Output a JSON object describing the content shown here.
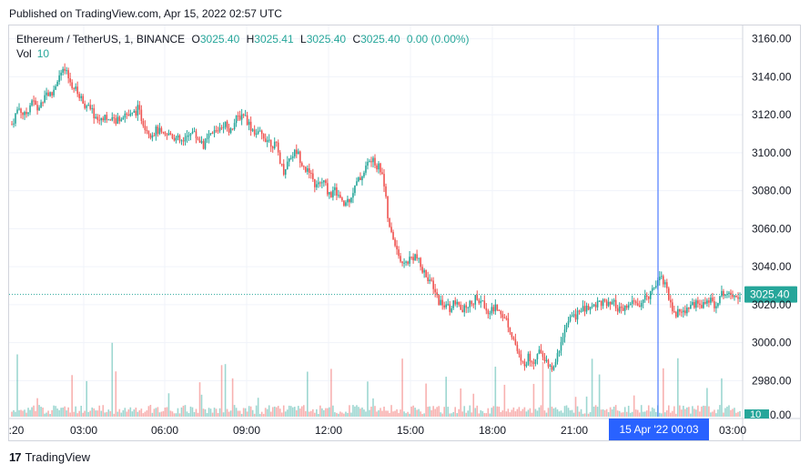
{
  "header": {
    "published": "Published on TradingView.com, Apr 15, 2022 02:57 UTC"
  },
  "legend": {
    "symbol": "Ethereum / TetherUS, 1, BINANCE",
    "o_label": "O",
    "o_value": "3025.40",
    "h_label": "H",
    "h_value": "3025.41",
    "l_label": "L",
    "l_value": "3025.40",
    "c_label": "C",
    "c_value": "3025.40",
    "change": "0.00 (0.00%)",
    "vol_label": "Vol",
    "vol_value": "10"
  },
  "footer": {
    "brand": "TradingView",
    "logo_text": "17"
  },
  "colors": {
    "up": "#26a69a",
    "down": "#ef5350",
    "crosshair": "#2962ff",
    "price_tag": "#26a69a",
    "dotted": "#26a69a"
  },
  "chart_data": {
    "type": "candlestick",
    "symbol": "Ethereum / TetherUS",
    "interval": "1",
    "exchange": "BINANCE",
    "price_axis": {
      "ticks": [
        3160,
        3140,
        3120,
        3100,
        3080,
        3060,
        3040,
        3020,
        3000,
        2980
      ],
      "labels": [
        "3160.00",
        "3140.00",
        "3120.00",
        "3100.00",
        "3080.00",
        "3060.00",
        "3040.00",
        "3020.00",
        "3000.00",
        "2980.00"
      ],
      "range": [
        2962,
        3167
      ]
    },
    "time_axis": {
      "labels": [
        ":20",
        "03:00",
        "06:00",
        "09:00",
        "12:00",
        "15:00",
        "18:00",
        "21:00",
        "03:00"
      ]
    },
    "last_price": 3025.4,
    "last_price_label": "3025.40",
    "crosshair_time_label": "15 Apr '22   00:03",
    "volume_axis_label": "10",
    "volume_axis_tail": "0.00",
    "price_path": [
      [
        "00:20",
        3115
      ],
      [
        "00:35",
        3124
      ],
      [
        "00:50",
        3119
      ],
      [
        "01:05",
        3128
      ],
      [
        "01:20",
        3122
      ],
      [
        "01:35",
        3132
      ],
      [
        "01:50",
        3130
      ],
      [
        "02:00",
        3140
      ],
      [
        "02:10",
        3143
      ],
      [
        "02:25",
        3136
      ],
      [
        "02:40",
        3131
      ],
      [
        "02:55",
        3126
      ],
      [
        "03:10",
        3122
      ],
      [
        "03:25",
        3117
      ],
      [
        "03:40",
        3120
      ],
      [
        "03:55",
        3116
      ],
      [
        "04:10",
        3118
      ],
      [
        "04:25",
        3121
      ],
      [
        "04:40",
        3119
      ],
      [
        "04:55",
        3123
      ],
      [
        "05:10",
        3115
      ],
      [
        "05:25",
        3110
      ],
      [
        "05:40",
        3112
      ],
      [
        "05:55",
        3108
      ],
      [
        "06:10",
        3110
      ],
      [
        "06:25",
        3107
      ],
      [
        "06:40",
        3105
      ],
      [
        "06:55",
        3112
      ],
      [
        "07:10",
        3108
      ],
      [
        "07:25",
        3104
      ],
      [
        "07:40",
        3109
      ],
      [
        "07:55",
        3112
      ],
      [
        "08:10",
        3116
      ],
      [
        "08:25",
        3112
      ],
      [
        "08:40",
        3118
      ],
      [
        "08:55",
        3121
      ],
      [
        "09:10",
        3114
      ],
      [
        "09:25",
        3110
      ],
      [
        "09:40",
        3109
      ],
      [
        "09:55",
        3106
      ],
      [
        "10:10",
        3103
      ],
      [
        "10:25",
        3090
      ],
      [
        "10:40",
        3098
      ],
      [
        "10:55",
        3101
      ],
      [
        "11:10",
        3094
      ],
      [
        "11:25",
        3088
      ],
      [
        "11:40",
        3082
      ],
      [
        "11:55",
        3085
      ],
      [
        "12:10",
        3078
      ],
      [
        "12:25",
        3080
      ],
      [
        "12:40",
        3072
      ],
      [
        "12:55",
        3076
      ],
      [
        "13:10",
        3083
      ],
      [
        "13:25",
        3089
      ],
      [
        "13:40",
        3096
      ],
      [
        "13:55",
        3094
      ],
      [
        "14:05",
        3090
      ],
      [
        "14:15",
        3060
      ],
      [
        "14:30",
        3052
      ],
      [
        "14:45",
        3040
      ],
      [
        "15:00",
        3044
      ],
      [
        "15:15",
        3046
      ],
      [
        "15:30",
        3038
      ],
      [
        "15:45",
        3034
      ],
      [
        "16:00",
        3025
      ],
      [
        "16:15",
        3020
      ],
      [
        "16:30",
        3018
      ],
      [
        "16:45",
        3021
      ],
      [
        "17:00",
        3016
      ],
      [
        "17:15",
        3020
      ],
      [
        "17:30",
        3023
      ],
      [
        "17:45",
        3021
      ],
      [
        "18:00",
        3017
      ],
      [
        "18:15",
        3018
      ],
      [
        "18:30",
        3016
      ],
      [
        "18:45",
        3010
      ],
      [
        "18:55",
        3000
      ],
      [
        "19:10",
        2988
      ],
      [
        "19:25",
        2992
      ],
      [
        "19:40",
        2991
      ],
      [
        "19:55",
        2996
      ],
      [
        "20:10",
        2987
      ],
      [
        "20:25",
        2986
      ],
      [
        "20:40",
        3002
      ],
      [
        "20:55",
        3011
      ],
      [
        "21:10",
        3014
      ],
      [
        "21:25",
        3017
      ],
      [
        "21:40",
        3018
      ],
      [
        "21:55",
        3020
      ],
      [
        "22:10",
        3022
      ],
      [
        "22:25",
        3019
      ],
      [
        "22:40",
        3020
      ],
      [
        "22:55",
        3016
      ],
      [
        "23:10",
        3019
      ],
      [
        "23:25",
        3021
      ],
      [
        "23:40",
        3020
      ],
      [
        "23:55",
        3024
      ],
      [
        "00:03",
        3030
      ],
      [
        "00:10",
        3036
      ],
      [
        "00:20",
        3028
      ],
      [
        "00:30",
        3015
      ],
      [
        "00:45",
        3016
      ],
      [
        "01:00",
        3018
      ],
      [
        "01:15",
        3021
      ],
      [
        "01:30",
        3019
      ],
      [
        "01:45",
        3023
      ],
      [
        "02:00",
        3020
      ],
      [
        "02:15",
        3024
      ],
      [
        "02:30",
        3028
      ],
      [
        "02:45",
        3026
      ],
      [
        "02:57",
        3025.4
      ]
    ]
  }
}
